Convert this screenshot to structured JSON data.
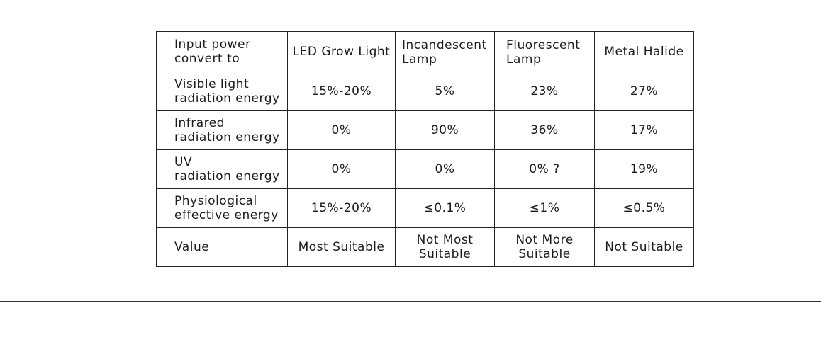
{
  "table": {
    "header": {
      "corner": [
        "Input power",
        "convert to"
      ],
      "columns": [
        {
          "lines": [
            "LED Grow Light"
          ]
        },
        {
          "lines": [
            "Incandescent",
            "Lamp"
          ]
        },
        {
          "lines": [
            "Fluorescent",
            "Lamp"
          ]
        },
        {
          "lines": [
            "Metal Halide"
          ]
        }
      ]
    },
    "rows": [
      {
        "label": [
          "Visible light",
          "radiation energy"
        ],
        "cells": [
          "15%-20%",
          "5%",
          "23%",
          "27%"
        ]
      },
      {
        "label": [
          "Infrared",
          "radiation energy"
        ],
        "cells": [
          "0%",
          "90%",
          "36%",
          "17%"
        ]
      },
      {
        "label": [
          "UV",
          "radiation energy"
        ],
        "cells": [
          "0%",
          "0%",
          "0% ?",
          "19%"
        ]
      },
      {
        "label": [
          "Physiological",
          "effective energy"
        ],
        "cells": [
          "15%-20%",
          "≤0.1%",
          "≤1%",
          "≤0.5%"
        ]
      },
      {
        "label": [
          "Value"
        ],
        "cells": [
          [
            "Most Suitable"
          ],
          [
            "Not Most",
            "Suitable"
          ],
          [
            "Not More",
            "Suitable"
          ],
          [
            "Not Suitable"
          ]
        ]
      }
    ]
  }
}
